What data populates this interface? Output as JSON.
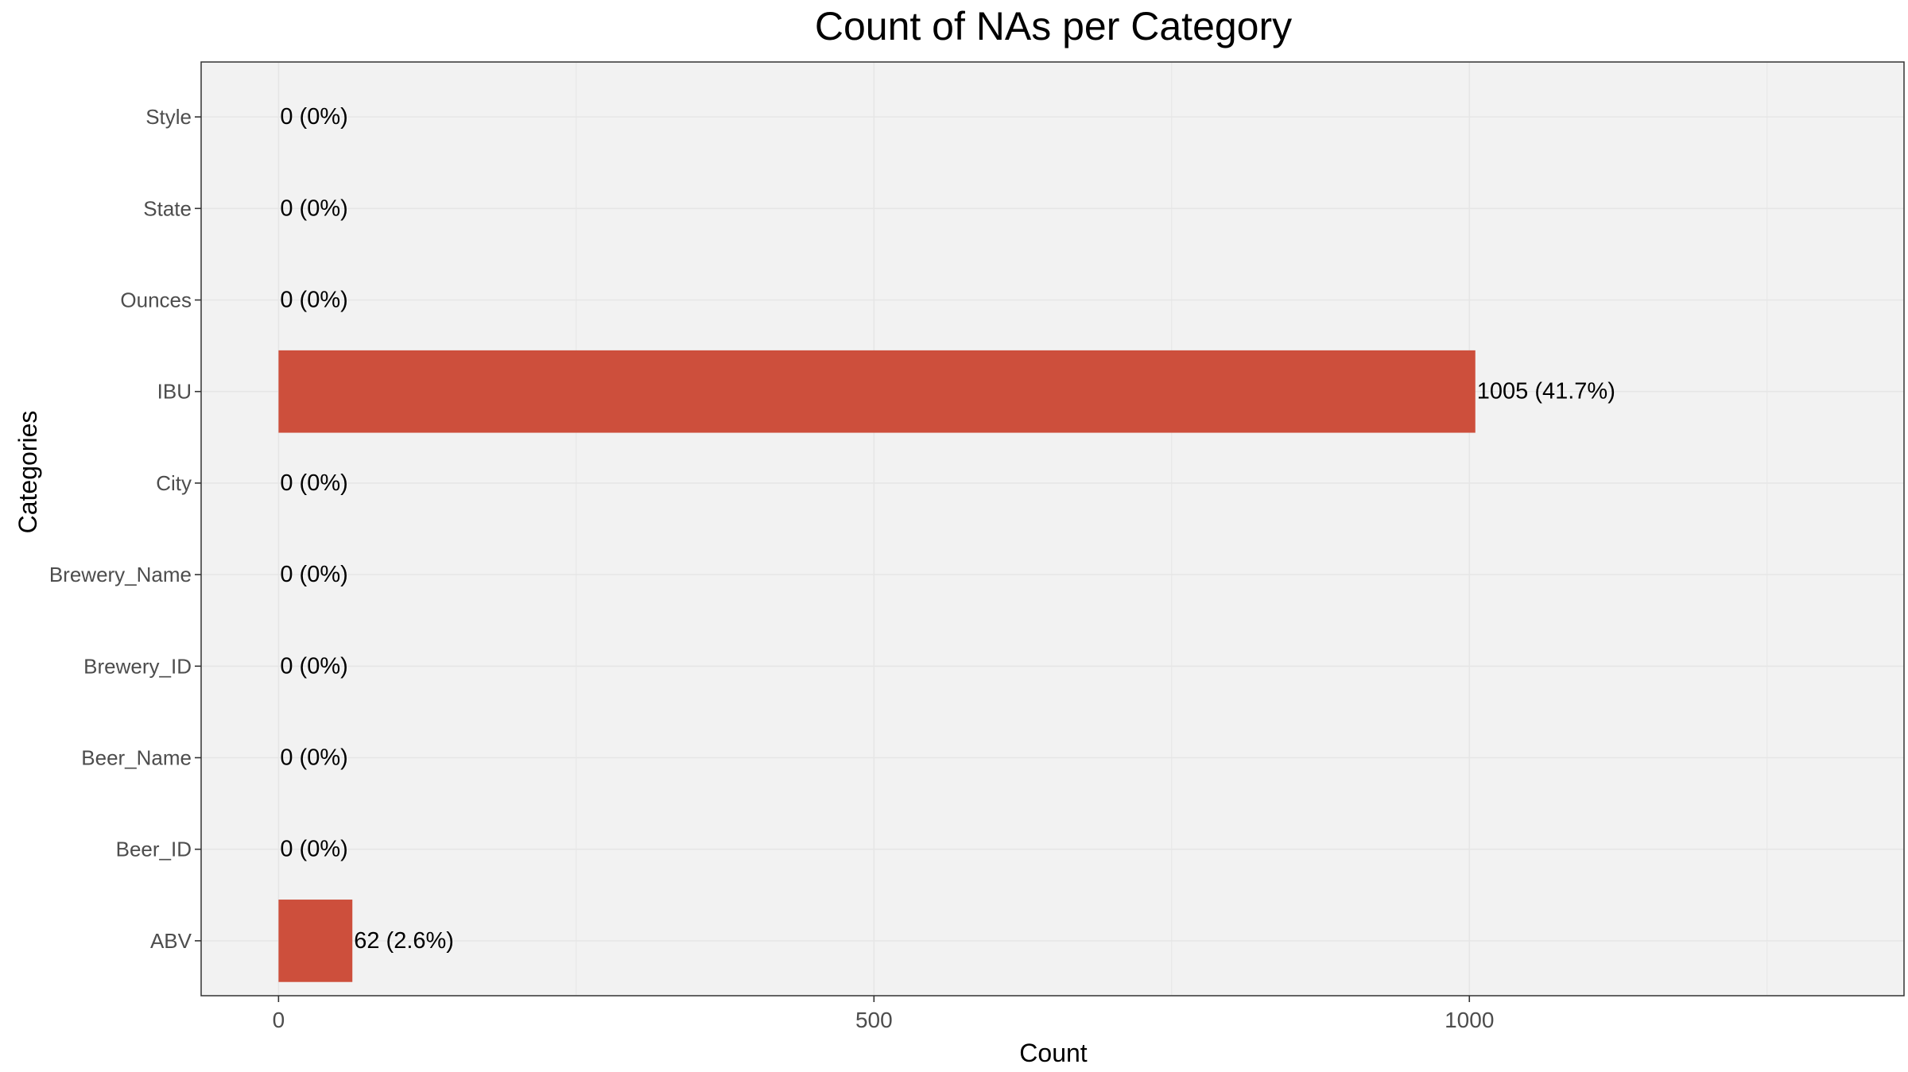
{
  "chart_data": {
    "type": "bar",
    "orientation": "horizontal",
    "title": "Count of NAs per Category",
    "xlabel": "Count",
    "ylabel": "Categories",
    "categories": [
      "ABV",
      "Beer_ID",
      "Beer_Name",
      "Brewery_ID",
      "Brewery_Name",
      "City",
      "IBU",
      "Ounces",
      "State",
      "Style"
    ],
    "values": [
      62,
      0,
      0,
      0,
      0,
      0,
      1005,
      0,
      0,
      0
    ],
    "labels": [
      "62 (2.6%)",
      "0 (0%)",
      "0 (0%)",
      "0 (0%)",
      "0 (0%)",
      "0 (0%)",
      "1005 (41.7%)",
      "0 (0%)",
      "0 (0%)",
      "0 (0%)"
    ],
    "xticks": [
      0,
      500,
      1000
    ],
    "xtick_labels": [
      "0",
      "500",
      "1000"
    ],
    "xlim": [
      -65,
      1365
    ],
    "grid": true,
    "legend": "none",
    "colors": {
      "bar": "#CD4F3C",
      "panel": "#F2F2F2",
      "grid": "#E6E6E6",
      "border": "#333333"
    }
  }
}
